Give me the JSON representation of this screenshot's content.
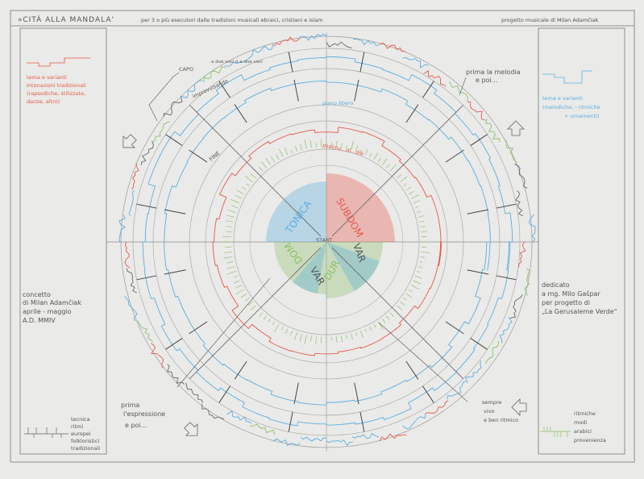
{
  "header": {
    "title": "»CITÀ ALLA MANDALA'",
    "subtitle": "per 3 o più esecutori dalle tradizioni musicali ebraici, cristiani e islam",
    "credit": "progetto musicale di Milan Adamčiak"
  },
  "left_panel": {
    "red_note": [
      "tema e varianti",
      "intonazioni tradizionali",
      "(rapsodiche, stilizzate,",
      "danze, altro)"
    ],
    "concept": [
      "concetto",
      "di Milan Adamčiak",
      "aprile - maggio",
      "A.D. MMIV"
    ],
    "rhythm_note": [
      "tecnica",
      "ritmi",
      "europei",
      "folkloristici",
      "tradizionali"
    ]
  },
  "right_panel": {
    "blue_note": [
      "tema e varianti",
      "(melodiche, - ritmiche",
      "+ ornamenti)"
    ],
    "dedication": [
      "dedicato",
      "a mg. Milo Gašpar",
      "per progetto di",
      "„La Gerusaleme Verde“"
    ],
    "rhythm_note": [
      "ritmiche",
      "modi",
      "arabici",
      "provenienza"
    ]
  },
  "mandala": {
    "center_labels": [
      "TONICA",
      "SUBDOM",
      "VAR",
      "DUR",
      "VAR",
      "DOM"
    ],
    "center_word": "START",
    "annotations": {
      "capo": "CAPO",
      "improvvisando": "improvvisando",
      "two_voices": "a due voci o a due voci",
      "melody": [
        "prima la melodia",
        "e poi..."
      ],
      "piano_libero": "piano libero",
      "salmodia": "psalmo...di...dia",
      "fine": "FINE",
      "expression": [
        "prima",
        "l'espressione",
        "e poi..."
      ],
      "vivo": [
        "sempre",
        "vivo",
        "e ben ritmico"
      ]
    },
    "colors": {
      "red": "#e8584a",
      "blue": "#5aaee0",
      "green": "#8cc06a",
      "pencil": "#6a6a6a"
    }
  }
}
